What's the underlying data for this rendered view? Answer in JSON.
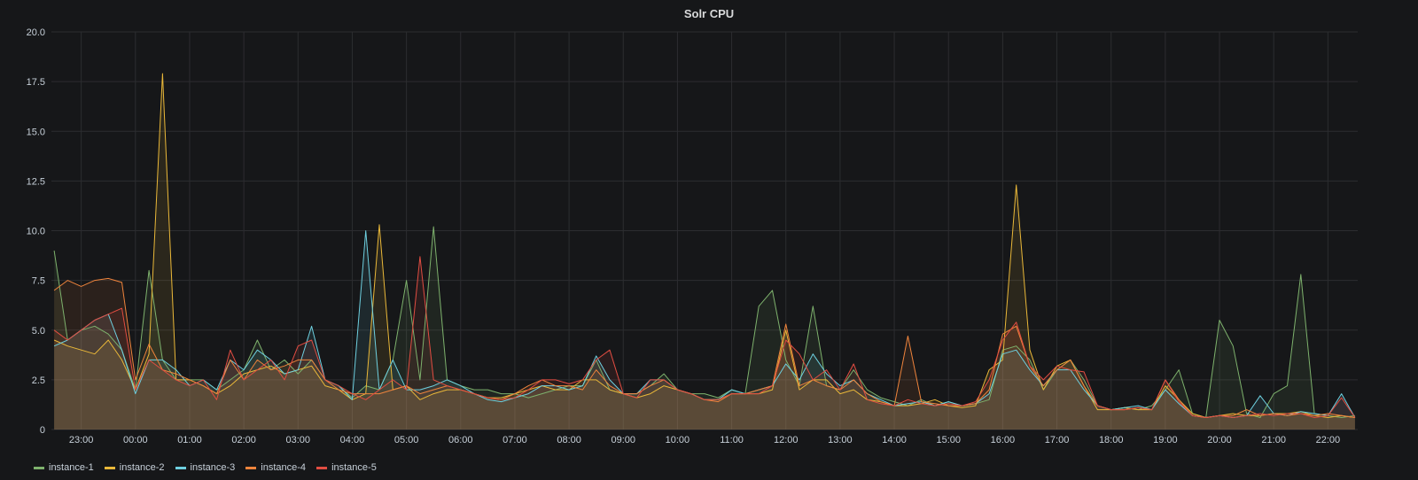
{
  "panel": {
    "title": "Solr CPU"
  },
  "chart_data": {
    "type": "area",
    "title": "Solr CPU",
    "xlabel": "",
    "ylabel": "",
    "ylim": [
      0,
      20
    ],
    "yticks": [
      "0",
      "2.5",
      "5.0",
      "7.5",
      "10.0",
      "12.5",
      "15.0",
      "17.5",
      "20.0"
    ],
    "xticks": [
      "23:00",
      "00:00",
      "01:00",
      "02:00",
      "03:00",
      "04:00",
      "05:00",
      "06:00",
      "07:00",
      "08:00",
      "09:00",
      "10:00",
      "11:00",
      "12:00",
      "13:00",
      "14:00",
      "15:00",
      "16:00",
      "17:00",
      "18:00",
      "19:00",
      "20:00",
      "21:00",
      "22:00"
    ],
    "x_hours": [
      -1.5,
      -1.25,
      -1.0,
      -0.75,
      -0.5,
      -0.25,
      0.0,
      0.25,
      0.5,
      0.75,
      1.0,
      1.25,
      1.5,
      1.75,
      2.0,
      2.25,
      2.5,
      2.75,
      3.0,
      3.25,
      3.5,
      3.75,
      4.0,
      4.25,
      4.5,
      4.75,
      5.0,
      5.25,
      5.5,
      5.75,
      6.0,
      6.25,
      6.5,
      6.75,
      7.0,
      7.25,
      7.5,
      7.75,
      8.0,
      8.25,
      8.5,
      8.75,
      9.0,
      9.25,
      9.5,
      9.75,
      10.0,
      10.25,
      10.5,
      10.75,
      11.0,
      11.25,
      11.5,
      11.75,
      12.0,
      12.25,
      12.5,
      12.75,
      13.0,
      13.25,
      13.5,
      13.75,
      14.0,
      14.25,
      14.5,
      14.75,
      15.0,
      15.25,
      15.5,
      15.75,
      16.0,
      16.25,
      16.5,
      16.75,
      17.0,
      17.25,
      17.5,
      17.75,
      18.0,
      18.25,
      18.5,
      18.75,
      19.0,
      19.25,
      19.5,
      19.75,
      20.0,
      20.25,
      20.5,
      20.75,
      21.0,
      21.25,
      21.5,
      21.75,
      22.0,
      22.25,
      22.5
    ],
    "series": [
      {
        "name": "instance-1",
        "color": "#7eb26d",
        "values": [
          9.0,
          4.5,
          5.0,
          5.2,
          4.8,
          4.0,
          2.0,
          8.0,
          3.5,
          2.5,
          2.5,
          2.5,
          2.0,
          2.5,
          3.0,
          4.5,
          3.0,
          3.5,
          2.8,
          3.5,
          2.5,
          2.2,
          1.6,
          2.2,
          2.0,
          3.5,
          7.5,
          2.5,
          10.2,
          2.5,
          2.2,
          2.0,
          2.0,
          1.8,
          1.8,
          1.6,
          1.8,
          2.0,
          2.2,
          2.2,
          3.5,
          2.0,
          1.8,
          1.8,
          2.2,
          2.8,
          2.0,
          1.8,
          1.8,
          1.6,
          2.0,
          1.8,
          6.2,
          7.0,
          3.5,
          2.2,
          6.2,
          2.2,
          2.0,
          3.0,
          2.0,
          1.6,
          1.4,
          1.2,
          1.5,
          1.2,
          1.4,
          1.2,
          1.3,
          1.5,
          4.0,
          4.2,
          3.5,
          2.0,
          3.0,
          3.5,
          2.5,
          1.2,
          1.0,
          1.1,
          1.0,
          1.2,
          2.0,
          3.0,
          0.8,
          0.6,
          5.5,
          4.2,
          0.8,
          0.6,
          1.8,
          2.2,
          7.8,
          0.8,
          0.7,
          0.6,
          0.7
        ]
      },
      {
        "name": "instance-2",
        "color": "#eab839",
        "values": [
          4.5,
          4.2,
          4.0,
          3.8,
          4.5,
          3.5,
          2.0,
          3.8,
          17.9,
          2.5,
          2.5,
          2.2,
          1.8,
          2.2,
          2.8,
          3.0,
          3.2,
          2.8,
          3.0,
          3.2,
          2.2,
          2.0,
          1.5,
          1.8,
          10.3,
          2.0,
          2.2,
          1.5,
          1.8,
          2.0,
          2.0,
          1.8,
          1.6,
          1.6,
          1.8,
          2.0,
          2.2,
          2.0,
          2.0,
          2.5,
          2.5,
          2.0,
          1.8,
          1.6,
          1.8,
          2.2,
          2.0,
          1.8,
          1.5,
          1.5,
          1.8,
          1.8,
          1.8,
          2.0,
          5.0,
          2.0,
          2.5,
          2.5,
          1.8,
          2.0,
          1.5,
          1.4,
          1.2,
          1.2,
          1.3,
          1.5,
          1.2,
          1.1,
          1.2,
          3.0,
          3.5,
          12.3,
          4.0,
          2.0,
          3.2,
          3.5,
          2.2,
          1.0,
          1.0,
          1.1,
          1.0,
          1.0,
          2.2,
          1.5,
          0.8,
          0.6,
          0.7,
          0.8,
          0.7,
          0.7,
          0.8,
          0.8,
          0.9,
          0.7,
          0.6,
          0.7,
          0.6
        ]
      },
      {
        "name": "instance-3",
        "color": "#6ed0e0",
        "values": [
          4.2,
          4.5,
          5.0,
          5.5,
          5.8,
          4.0,
          1.8,
          3.5,
          3.5,
          3.0,
          2.2,
          2.5,
          2.0,
          3.5,
          3.0,
          4.0,
          3.5,
          2.8,
          3.0,
          5.2,
          2.5,
          2.2,
          1.5,
          10.0,
          2.0,
          3.5,
          2.0,
          2.0,
          2.2,
          2.5,
          2.2,
          1.8,
          1.5,
          1.4,
          1.6,
          1.8,
          2.2,
          2.2,
          2.0,
          2.2,
          3.7,
          2.5,
          1.8,
          1.8,
          2.5,
          2.5,
          2.0,
          1.8,
          1.5,
          1.5,
          2.0,
          1.8,
          2.0,
          2.2,
          3.3,
          2.5,
          3.8,
          2.8,
          2.2,
          2.5,
          1.8,
          1.5,
          1.2,
          1.3,
          1.4,
          1.2,
          1.4,
          1.2,
          1.3,
          1.8,
          3.8,
          4.0,
          3.0,
          2.2,
          3.0,
          3.0,
          2.0,
          1.2,
          1.0,
          1.1,
          1.2,
          1.0,
          2.0,
          1.3,
          0.7,
          0.6,
          0.7,
          0.6,
          0.7,
          1.7,
          0.8,
          0.7,
          0.9,
          0.8,
          0.7,
          1.8,
          0.6
        ]
      },
      {
        "name": "instance-4",
        "color": "#ef843c",
        "values": [
          7.0,
          7.5,
          7.2,
          7.5,
          7.6,
          7.4,
          2.5,
          4.3,
          3.0,
          2.8,
          2.5,
          2.2,
          1.8,
          3.5,
          2.5,
          3.5,
          3.0,
          3.2,
          3.5,
          3.5,
          2.5,
          2.0,
          1.8,
          1.8,
          1.8,
          2.0,
          2.2,
          1.8,
          2.0,
          2.2,
          2.0,
          1.8,
          1.6,
          1.5,
          1.8,
          2.2,
          2.5,
          2.2,
          2.2,
          2.0,
          3.0,
          2.2,
          1.8,
          1.8,
          2.2,
          2.5,
          2.0,
          1.8,
          1.5,
          1.4,
          1.8,
          1.8,
          2.0,
          2.2,
          5.3,
          2.2,
          2.5,
          2.2,
          2.0,
          2.5,
          1.8,
          1.4,
          1.2,
          4.7,
          1.4,
          1.3,
          1.2,
          1.2,
          1.3,
          2.0,
          4.8,
          5.2,
          3.2,
          2.2,
          3.0,
          3.5,
          2.2,
          1.2,
          1.0,
          1.0,
          1.1,
          1.0,
          2.5,
          1.5,
          0.7,
          0.6,
          0.7,
          0.7,
          1.0,
          0.7,
          0.8,
          0.7,
          0.8,
          0.7,
          0.8,
          0.7,
          0.6
        ]
      },
      {
        "name": "instance-5",
        "color": "#e24d42",
        "values": [
          5.0,
          4.5,
          5.0,
          5.5,
          5.8,
          6.1,
          2.0,
          3.5,
          3.0,
          2.5,
          2.2,
          2.5,
          1.5,
          4.0,
          2.5,
          3.0,
          3.5,
          2.5,
          4.2,
          4.5,
          2.5,
          2.2,
          1.8,
          1.5,
          2.0,
          2.5,
          2.0,
          8.7,
          2.5,
          2.2,
          2.0,
          1.8,
          1.6,
          1.5,
          1.6,
          2.0,
          2.5,
          2.5,
          2.3,
          2.5,
          3.5,
          4.0,
          1.8,
          1.6,
          2.5,
          2.5,
          2.0,
          1.8,
          1.5,
          1.5,
          1.8,
          1.8,
          1.8,
          2.2,
          4.5,
          3.8,
          2.5,
          3.0,
          2.0,
          3.3,
          1.5,
          1.3,
          1.2,
          1.5,
          1.3,
          1.2,
          1.3,
          1.2,
          1.4,
          2.5,
          4.5,
          5.4,
          3.2,
          2.5,
          3.2,
          3.0,
          2.9,
          1.2,
          1.0,
          1.0,
          1.1,
          1.0,
          2.5,
          1.4,
          0.7,
          0.6,
          0.7,
          0.6,
          0.7,
          0.8,
          0.7,
          0.8,
          0.8,
          0.6,
          0.7,
          1.6,
          0.6
        ]
      }
    ],
    "grid": true,
    "legend": "bottom-left"
  }
}
